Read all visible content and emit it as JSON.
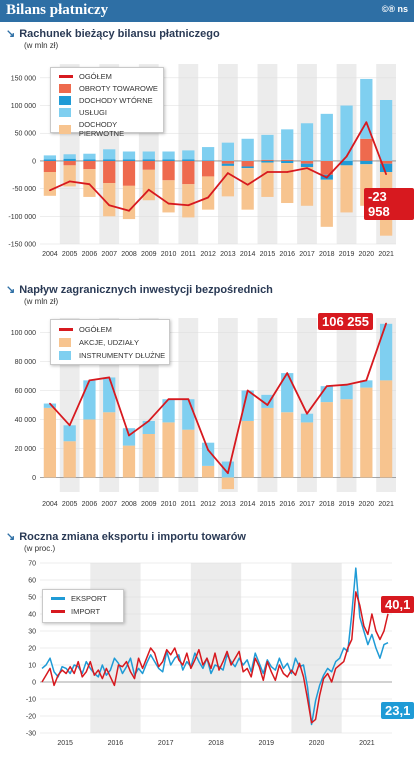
{
  "header": {
    "title": "Bilans płatniczy",
    "logo": "©® ns"
  },
  "colors": {
    "bg": "#ffffff",
    "header": "#2e6fa5",
    "red_line": "#d7191f",
    "salmon": "#ee6a4e",
    "blue": "#1f9bd6",
    "light_blue": "#7fcff0",
    "peach": "#f7c48f",
    "band": "#ececec"
  },
  "sections": [
    {
      "title": "Rachunek bieżący bilansu płatniczego",
      "unit": "(w mln zł)",
      "callout": "-23 958"
    },
    {
      "title": "Napływ zagranicznych inwestycji bezpośrednich",
      "unit": "(w mln zł)",
      "callout": "106 255"
    },
    {
      "title": "Roczna zmiana eksportu i importu towarów",
      "unit": "(w proc.)",
      "callout_import": "40,1",
      "callout_export": "23,1"
    }
  ],
  "chart_data": [
    {
      "type": "bar",
      "title": "Rachunek bieżący bilansu płatniczego",
      "ylabel": "(w mln zł)",
      "ylim": [
        -150000,
        175000
      ],
      "yticks": [
        -150000,
        -100000,
        -50000,
        0,
        50000,
        100000,
        150000
      ],
      "ytick_labels": [
        "-150 000",
        "-100 000",
        "-50 000",
        "0",
        "50 000",
        "100 000",
        "150 000"
      ],
      "categories": [
        "2004",
        "2005",
        "2006",
        "2007",
        "2008",
        "2009",
        "2010",
        "2011",
        "2012",
        "2013",
        "2014",
        "2015",
        "2016",
        "2017",
        "2018",
        "2019",
        "2020",
        "2021"
      ],
      "legend_position": "top-left",
      "series": [
        {
          "name": "OGÓŁEM",
          "kind": "line",
          "values": [
            -53000,
            -37000,
            -42000,
            -80000,
            -90000,
            -52000,
            -77000,
            -80000,
            -66000,
            -22000,
            -43000,
            -20000,
            -20000,
            -13000,
            -30000,
            8000,
            70000,
            -23958
          ]
        },
        {
          "name": "OBROTY TOWAROWE",
          "kind": "bar",
          "values": [
            -20000,
            -8000,
            -15000,
            -40000,
            -45000,
            -16000,
            -35000,
            -42000,
            -28000,
            -5000,
            -10000,
            2000,
            2000,
            -5000,
            -25000,
            0,
            40000,
            -5000
          ]
        },
        {
          "name": "DOCHODY WTÓRNE",
          "kind": "bar",
          "values": [
            3000,
            4000,
            3000,
            3000,
            3000,
            3000,
            3000,
            3000,
            1000,
            -4000,
            -3000,
            -3000,
            -4000,
            -6000,
            -9000,
            -8000,
            -6000,
            -15000
          ]
        },
        {
          "name": "USŁUGI",
          "kind": "bar",
          "values": [
            7000,
            8000,
            10000,
            18000,
            14000,
            14000,
            14000,
            16000,
            24000,
            33000,
            40000,
            45000,
            55000,
            68000,
            85000,
            100000,
            108000,
            110000
          ]
        },
        {
          "name": "DOCHODY PIERWOTNE",
          "kind": "bar",
          "values": [
            -43000,
            -38000,
            -50000,
            -60000,
            -60000,
            -55000,
            -58000,
            -60000,
            -60000,
            -55000,
            -75000,
            -62000,
            -72000,
            -70000,
            -85000,
            -85000,
            -75000,
            -115000
          ]
        }
      ]
    },
    {
      "type": "bar",
      "title": "Napływ zagranicznych inwestycji bezpośrednich",
      "ylabel": "(w mln zł)",
      "ylim": [
        -10000,
        110000
      ],
      "yticks": [
        0,
        20000,
        40000,
        60000,
        80000,
        100000
      ],
      "ytick_labels": [
        "0",
        "20 000",
        "40 000",
        "60 000",
        "80 000",
        "100 000"
      ],
      "categories": [
        "2004",
        "2005",
        "2006",
        "2007",
        "2008",
        "2009",
        "2010",
        "2011",
        "2012",
        "2013",
        "2014",
        "2015",
        "2016",
        "2017",
        "2018",
        "2019",
        "2020",
        "2021"
      ],
      "legend_position": "top-left",
      "series": [
        {
          "name": "OGÓŁEM",
          "kind": "line",
          "values": [
            51000,
            36000,
            67000,
            69000,
            29000,
            39000,
            54000,
            54000,
            19000,
            3000,
            60000,
            50000,
            72000,
            44000,
            63000,
            64000,
            67000,
            106255
          ]
        },
        {
          "name": "AKCJE, UDZIAŁY",
          "kind": "bar",
          "values": [
            48000,
            25000,
            40000,
            45000,
            22000,
            30000,
            38000,
            33000,
            8000,
            -8000,
            39000,
            48000,
            45000,
            38000,
            52000,
            54000,
            62000,
            67000
          ]
        },
        {
          "name": "INSTRUMENTY DŁUŻNE",
          "kind": "bar",
          "values": [
            3000,
            11000,
            27000,
            24000,
            12000,
            9000,
            16000,
            21000,
            16000,
            11000,
            21000,
            9000,
            27000,
            6000,
            11000,
            10000,
            5000,
            39000
          ]
        }
      ]
    },
    {
      "type": "line",
      "title": "Roczna zmiana eksportu i importu towarów",
      "ylabel": "(w proc.)",
      "ylim": [
        -30,
        70
      ],
      "yticks": [
        -30,
        -20,
        -10,
        0,
        10,
        20,
        30,
        40,
        50,
        60,
        70
      ],
      "x_labels": [
        "2015",
        "2016",
        "2017",
        "2018",
        "2019",
        "2020",
        "2021"
      ],
      "legend_position": "top-left",
      "series": [
        {
          "name": "EKSPORT",
          "values": [
            8,
            10,
            14,
            6,
            3,
            9,
            8,
            5,
            10,
            9,
            5,
            12,
            8,
            5,
            3,
            10,
            4,
            7,
            14,
            11,
            5,
            9,
            14,
            4,
            8,
            5,
            11,
            16,
            12,
            8,
            6,
            18,
            10,
            14,
            16,
            7,
            12,
            9,
            17,
            12,
            8,
            14,
            5,
            10,
            9,
            7,
            16,
            12,
            9,
            14,
            10,
            13,
            6,
            17,
            11,
            5,
            13,
            9,
            7,
            14,
            8,
            11,
            5,
            14,
            9,
            10,
            -3,
            -25,
            -11,
            -2,
            4,
            8,
            6,
            12,
            14,
            20,
            18,
            40,
            67,
            38,
            30,
            22,
            28,
            20,
            14,
            22,
            23.1
          ]
        },
        {
          "name": "IMPORT",
          "values": [
            0,
            4,
            8,
            -2,
            4,
            7,
            5,
            9,
            5,
            12,
            3,
            6,
            12,
            4,
            7,
            2,
            8,
            3,
            -2,
            10,
            9,
            12,
            6,
            2,
            14,
            8,
            14,
            20,
            17,
            9,
            12,
            19,
            16,
            20,
            13,
            10,
            17,
            8,
            13,
            19,
            10,
            14,
            8,
            17,
            7,
            12,
            18,
            10,
            14,
            18,
            6,
            8,
            3,
            14,
            9,
            1,
            12,
            6,
            1,
            10,
            5,
            3,
            7,
            4,
            11,
            3,
            -10,
            -24,
            -22,
            -8,
            2,
            5,
            0,
            8,
            10,
            12,
            20,
            25,
            53,
            45,
            33,
            28,
            40,
            30,
            25,
            30,
            40.1
          ]
        }
      ]
    }
  ]
}
